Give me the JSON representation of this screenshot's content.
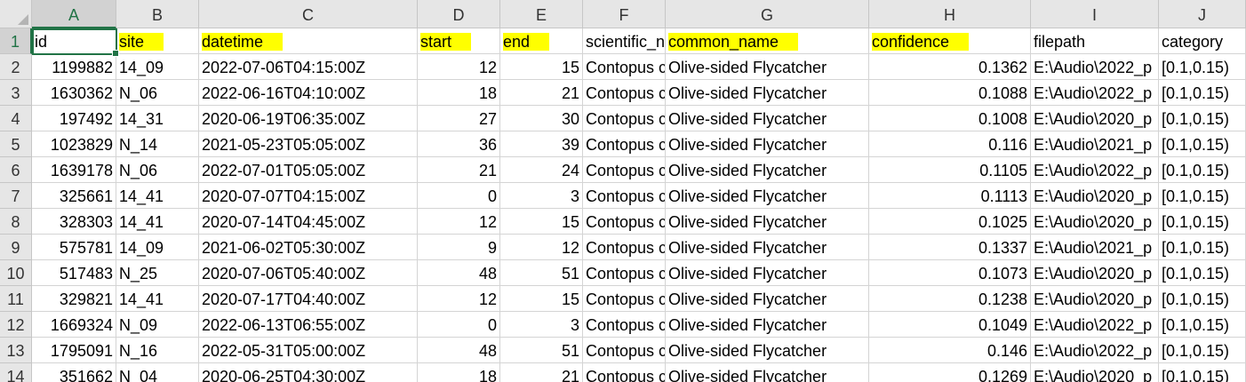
{
  "columns": [
    "A",
    "B",
    "C",
    "D",
    "E",
    "F",
    "G",
    "H",
    "I",
    "J"
  ],
  "selected_column": "A",
  "selected_row": 1,
  "header_row": [
    "id",
    "site",
    "datetime",
    "start",
    "end",
    "scientific_n",
    "common_name",
    "confidence",
    "filepath",
    "category"
  ],
  "highlighted_headers": [
    "site",
    "datetime",
    "start",
    "end",
    "common_name",
    "confidence"
  ],
  "highlight_color": "#ffff00",
  "accent_color": "#217346",
  "rows": [
    {
      "n": "2",
      "cells": [
        "1199882",
        "14_09",
        "2022-07-06T04:15:00Z",
        "12",
        "15",
        "Contopus c",
        "Olive-sided Flycatcher",
        "0.1362",
        "E:\\Audio\\2022_p",
        "[0.1,0.15)"
      ]
    },
    {
      "n": "3",
      "cells": [
        "1630362",
        "N_06",
        "2022-06-16T04:10:00Z",
        "18",
        "21",
        "Contopus c",
        "Olive-sided Flycatcher",
        "0.1088",
        "E:\\Audio\\2022_p",
        "[0.1,0.15)"
      ]
    },
    {
      "n": "4",
      "cells": [
        "197492",
        "14_31",
        "2020-06-19T06:35:00Z",
        "27",
        "30",
        "Contopus c",
        "Olive-sided Flycatcher",
        "0.1008",
        "E:\\Audio\\2020_p",
        "[0.1,0.15)"
      ]
    },
    {
      "n": "5",
      "cells": [
        "1023829",
        "N_14",
        "2021-05-23T05:05:00Z",
        "36",
        "39",
        "Contopus c",
        "Olive-sided Flycatcher",
        "0.116",
        "E:\\Audio\\2021_p",
        "[0.1,0.15)"
      ]
    },
    {
      "n": "6",
      "cells": [
        "1639178",
        "N_06",
        "2022-07-01T05:05:00Z",
        "21",
        "24",
        "Contopus c",
        "Olive-sided Flycatcher",
        "0.1105",
        "E:\\Audio\\2022_p",
        "[0.1,0.15)"
      ]
    },
    {
      "n": "7",
      "cells": [
        "325661",
        "14_41",
        "2020-07-07T04:15:00Z",
        "0",
        "3",
        "Contopus c",
        "Olive-sided Flycatcher",
        "0.1113",
        "E:\\Audio\\2020_p",
        "[0.1,0.15)"
      ]
    },
    {
      "n": "8",
      "cells": [
        "328303",
        "14_41",
        "2020-07-14T04:45:00Z",
        "12",
        "15",
        "Contopus c",
        "Olive-sided Flycatcher",
        "0.1025",
        "E:\\Audio\\2020_p",
        "[0.1,0.15)"
      ]
    },
    {
      "n": "9",
      "cells": [
        "575781",
        "14_09",
        "2021-06-02T05:30:00Z",
        "9",
        "12",
        "Contopus c",
        "Olive-sided Flycatcher",
        "0.1337",
        "E:\\Audio\\2021_p",
        "[0.1,0.15)"
      ]
    },
    {
      "n": "10",
      "cells": [
        "517483",
        "N_25",
        "2020-07-06T05:40:00Z",
        "48",
        "51",
        "Contopus c",
        "Olive-sided Flycatcher",
        "0.1073",
        "E:\\Audio\\2020_p",
        "[0.1,0.15)"
      ]
    },
    {
      "n": "11",
      "cells": [
        "329821",
        "14_41",
        "2020-07-17T04:40:00Z",
        "12",
        "15",
        "Contopus c",
        "Olive-sided Flycatcher",
        "0.1238",
        "E:\\Audio\\2020_p",
        "[0.1,0.15)"
      ]
    },
    {
      "n": "12",
      "cells": [
        "1669324",
        "N_09",
        "2022-06-13T06:55:00Z",
        "0",
        "3",
        "Contopus c",
        "Olive-sided Flycatcher",
        "0.1049",
        "E:\\Audio\\2022_p",
        "[0.1,0.15)"
      ]
    },
    {
      "n": "13",
      "cells": [
        "1795091",
        "N_16",
        "2022-05-31T05:00:00Z",
        "48",
        "51",
        "Contopus c",
        "Olive-sided Flycatcher",
        "0.146",
        "E:\\Audio\\2022_p",
        "[0.1,0.15)"
      ]
    },
    {
      "n": "14",
      "cells": [
        "351662",
        "N_04",
        "2020-06-25T04:30:00Z",
        "18",
        "21",
        "Contopus c",
        "Olive-sided Flycatcher",
        "0.1269",
        "E:\\Audio\\2020_p",
        "[0.1,0.15)"
      ]
    }
  ]
}
